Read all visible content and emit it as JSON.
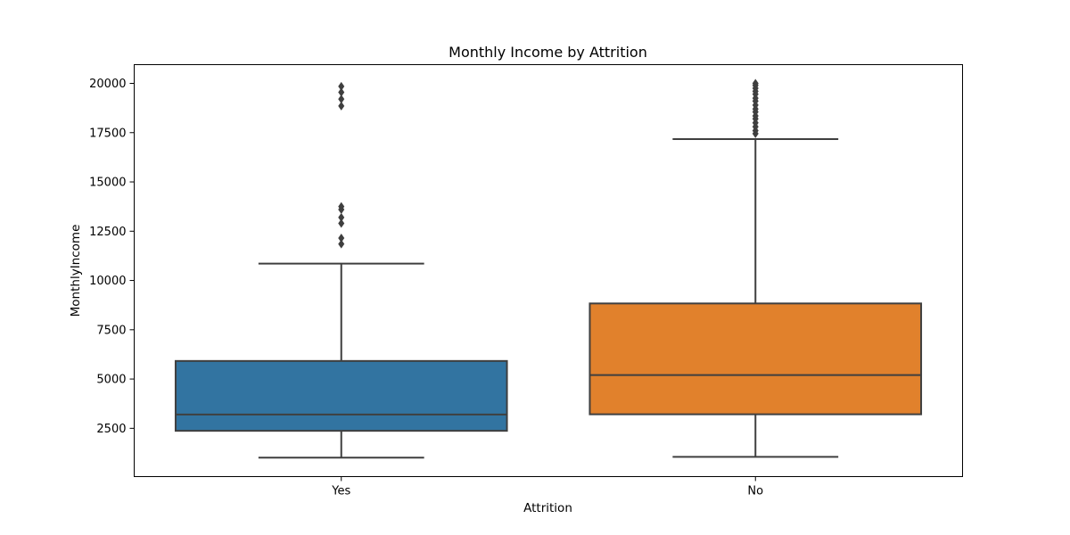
{
  "chart_data": {
    "type": "box",
    "title": "Monthly Income by Attrition",
    "xlabel": "Attrition",
    "ylabel": "MonthlyIncome",
    "ylim": [
      50,
      20950
    ],
    "yticks": [
      2500,
      5000,
      7500,
      10000,
      12500,
      15000,
      17500,
      20000
    ],
    "grid": false,
    "categories": [
      "Yes",
      "No"
    ],
    "boxes": [
      {
        "category": "Yes",
        "color": "#3274a1",
        "whisker_low": 1009,
        "q1": 2373,
        "median": 3202,
        "q3": 5916,
        "whisker_high": 10854,
        "outliers": [
          11850,
          12150,
          12900,
          13200,
          13600,
          13750,
          18850,
          19200,
          19550,
          19850
        ]
      },
      {
        "category": "No",
        "color": "#e1812c",
        "whisker_low": 1051,
        "q1": 3211,
        "median": 5204,
        "q3": 8834,
        "whisker_high": 17174,
        "outliers": [
          17450,
          17600,
          17800,
          18000,
          18200,
          18350,
          18550,
          18700,
          18900,
          19100,
          19250,
          19450,
          19600,
          19750,
          19900,
          19999
        ]
      }
    ]
  }
}
